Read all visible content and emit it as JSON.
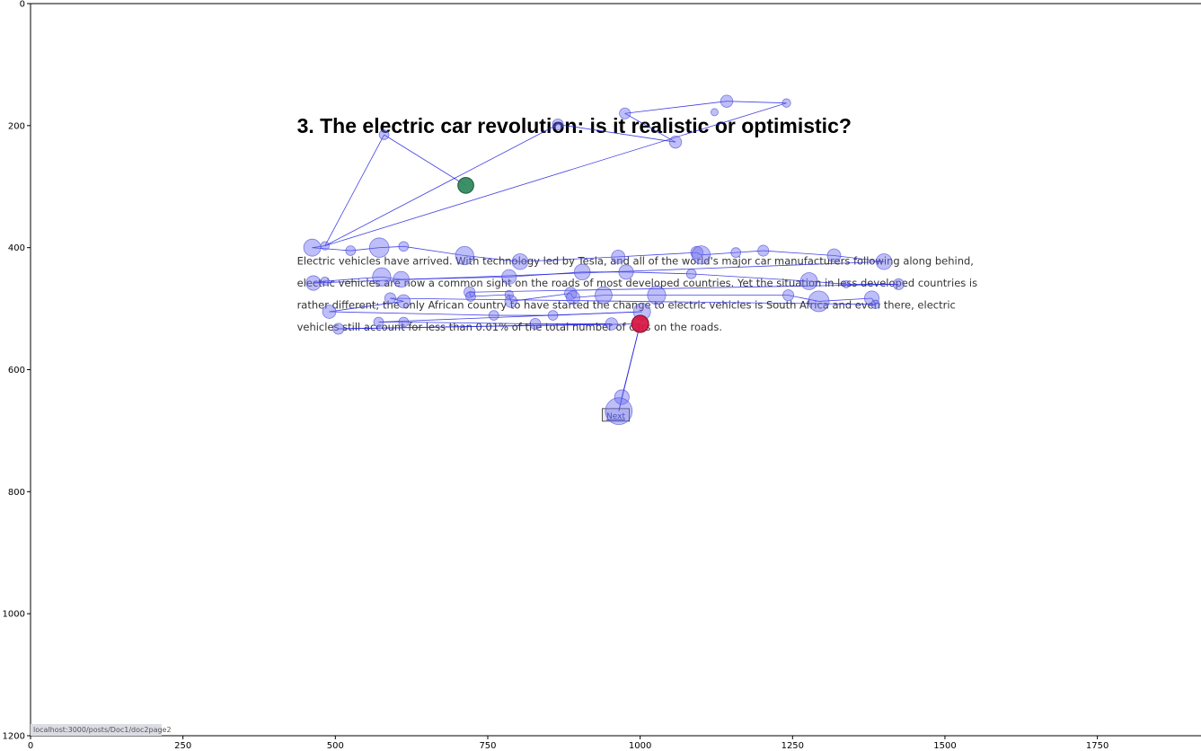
{
  "chart_data": {
    "type": "scatter",
    "title": "",
    "xlabel": "",
    "ylabel": "",
    "xlim": [
      0,
      1920
    ],
    "ylim": [
      1200,
      0
    ],
    "x_ticks": [
      0,
      250,
      500,
      750,
      1000,
      1250,
      1500,
      1750
    ],
    "y_ticks": [
      0,
      200,
      400,
      600,
      800,
      1000,
      1200
    ],
    "grid": false,
    "colors": {
      "fixation": "#6e6ef0",
      "path": "#2020e0",
      "start": "#2e8b57",
      "end": "#dc143c"
    },
    "background_page": {
      "title": "3. The electric car revolution: is it realistic or optimistic?",
      "title_pos": [
        437,
        200
      ],
      "paragraph_lines": [
        "Electric vehicles have arrived. With technology led by Tesla, and all of the world's major car manufacturers following along behind,",
        "electric vehicles are now a common sight on the roads of most developed countries. Yet the situation in less developed countries is",
        "rather different; the only African country to have started the change to electric vehicles is South Africa and even there, electric",
        "vehicles still account for less than 0.01% of the total number of cars on the roads."
      ],
      "paragraph_pos": [
        437,
        428
      ],
      "line_spacing": 36,
      "next_label": "Next",
      "next_pos": [
        960,
        680
      ],
      "status_url": "localhost:3000/posts/Doc1/doc2page2"
    },
    "start_point": {
      "x": 714,
      "y": 298,
      "r": 13
    },
    "end_point": {
      "x": 1000,
      "y": 525,
      "r": 14
    },
    "fixations": [
      {
        "x": 714,
        "y": 298,
        "r": 13
      },
      {
        "x": 580,
        "y": 215,
        "r": 8
      },
      {
        "x": 483,
        "y": 397,
        "r": 7
      },
      {
        "x": 865,
        "y": 198,
        "r": 9
      },
      {
        "x": 1058,
        "y": 227,
        "r": 10
      },
      {
        "x": 975,
        "y": 180,
        "r": 9
      },
      {
        "x": 1142,
        "y": 160,
        "r": 10
      },
      {
        "x": 1240,
        "y": 163,
        "r": 7
      },
      {
        "x": 1122,
        "y": 178,
        "r": 6
      },
      {
        "x": 462,
        "y": 400,
        "r": 14
      },
      {
        "x": 525,
        "y": 405,
        "r": 8
      },
      {
        "x": 572,
        "y": 400,
        "r": 16
      },
      {
        "x": 612,
        "y": 398,
        "r": 8
      },
      {
        "x": 712,
        "y": 413,
        "r": 15
      },
      {
        "x": 803,
        "y": 423,
        "r": 13
      },
      {
        "x": 964,
        "y": 415,
        "r": 11
      },
      {
        "x": 1093,
        "y": 408,
        "r": 10
      },
      {
        "x": 1100,
        "y": 412,
        "r": 15
      },
      {
        "x": 1157,
        "y": 408,
        "r": 8
      },
      {
        "x": 1202,
        "y": 405,
        "r": 9
      },
      {
        "x": 1318,
        "y": 413,
        "r": 11
      },
      {
        "x": 1400,
        "y": 423,
        "r": 13
      },
      {
        "x": 464,
        "y": 458,
        "r": 12
      },
      {
        "x": 483,
        "y": 455,
        "r": 7
      },
      {
        "x": 576,
        "y": 448,
        "r": 15
      },
      {
        "x": 608,
        "y": 452,
        "r": 13
      },
      {
        "x": 785,
        "y": 448,
        "r": 12
      },
      {
        "x": 905,
        "y": 440,
        "r": 13
      },
      {
        "x": 977,
        "y": 440,
        "r": 12
      },
      {
        "x": 1084,
        "y": 443,
        "r": 8
      },
      {
        "x": 1277,
        "y": 455,
        "r": 14
      },
      {
        "x": 1338,
        "y": 460,
        "r": 6
      },
      {
        "x": 1424,
        "y": 460,
        "r": 9
      },
      {
        "x": 720,
        "y": 473,
        "r": 9
      },
      {
        "x": 722,
        "y": 480,
        "r": 8
      },
      {
        "x": 785,
        "y": 477,
        "r": 7
      },
      {
        "x": 788,
        "y": 488,
        "r": 10
      },
      {
        "x": 886,
        "y": 475,
        "r": 10
      },
      {
        "x": 890,
        "y": 482,
        "r": 11
      },
      {
        "x": 940,
        "y": 478,
        "r": 14
      },
      {
        "x": 1027,
        "y": 478,
        "r": 15
      },
      {
        "x": 1243,
        "y": 478,
        "r": 9
      },
      {
        "x": 1293,
        "y": 488,
        "r": 17
      },
      {
        "x": 1380,
        "y": 483,
        "r": 12
      },
      {
        "x": 1386,
        "y": 493,
        "r": 7
      },
      {
        "x": 590,
        "y": 483,
        "r": 9
      },
      {
        "x": 612,
        "y": 488,
        "r": 11
      },
      {
        "x": 490,
        "y": 505,
        "r": 11
      },
      {
        "x": 760,
        "y": 511,
        "r": 8
      },
      {
        "x": 857,
        "y": 511,
        "r": 8
      },
      {
        "x": 1003,
        "y": 505,
        "r": 14
      },
      {
        "x": 571,
        "y": 522,
        "r": 8
      },
      {
        "x": 612,
        "y": 522,
        "r": 8
      },
      {
        "x": 828,
        "y": 525,
        "r": 9
      },
      {
        "x": 953,
        "y": 525,
        "r": 10
      },
      {
        "x": 505,
        "y": 533,
        "r": 9
      },
      {
        "x": 1000,
        "y": 525,
        "r": 14
      },
      {
        "x": 970,
        "y": 645,
        "r": 12
      },
      {
        "x": 965,
        "y": 668,
        "r": 22
      }
    ],
    "path": [
      [
        714,
        298
      ],
      [
        580,
        215
      ],
      [
        483,
        397
      ],
      [
        865,
        198
      ],
      [
        1058,
        227
      ],
      [
        975,
        180
      ],
      [
        1142,
        160
      ],
      [
        1240,
        163
      ],
      [
        483,
        397
      ],
      [
        462,
        400
      ],
      [
        525,
        405
      ],
      [
        572,
        400
      ],
      [
        612,
        398
      ],
      [
        712,
        413
      ],
      [
        803,
        423
      ],
      [
        964,
        415
      ],
      [
        1093,
        408
      ],
      [
        1100,
        412
      ],
      [
        1157,
        408
      ],
      [
        1202,
        405
      ],
      [
        1318,
        413
      ],
      [
        1400,
        423
      ],
      [
        464,
        458
      ],
      [
        483,
        455
      ],
      [
        576,
        448
      ],
      [
        608,
        452
      ],
      [
        785,
        448
      ],
      [
        905,
        440
      ],
      [
        977,
        440
      ],
      [
        1084,
        443
      ],
      [
        1277,
        455
      ],
      [
        1338,
        460
      ],
      [
        1424,
        460
      ],
      [
        720,
        473
      ],
      [
        722,
        480
      ],
      [
        785,
        477
      ],
      [
        788,
        488
      ],
      [
        886,
        475
      ],
      [
        890,
        482
      ],
      [
        940,
        478
      ],
      [
        1027,
        478
      ],
      [
        1243,
        478
      ],
      [
        1293,
        488
      ],
      [
        1380,
        483
      ],
      [
        1386,
        493
      ],
      [
        590,
        483
      ],
      [
        612,
        488
      ],
      [
        490,
        505
      ],
      [
        760,
        511
      ],
      [
        857,
        511
      ],
      [
        1003,
        505
      ],
      [
        571,
        522
      ],
      [
        612,
        522
      ],
      [
        828,
        525
      ],
      [
        953,
        525
      ],
      [
        505,
        533
      ],
      [
        1000,
        525
      ],
      [
        970,
        645
      ],
      [
        965,
        668
      ],
      [
        1000,
        525
      ]
    ]
  }
}
